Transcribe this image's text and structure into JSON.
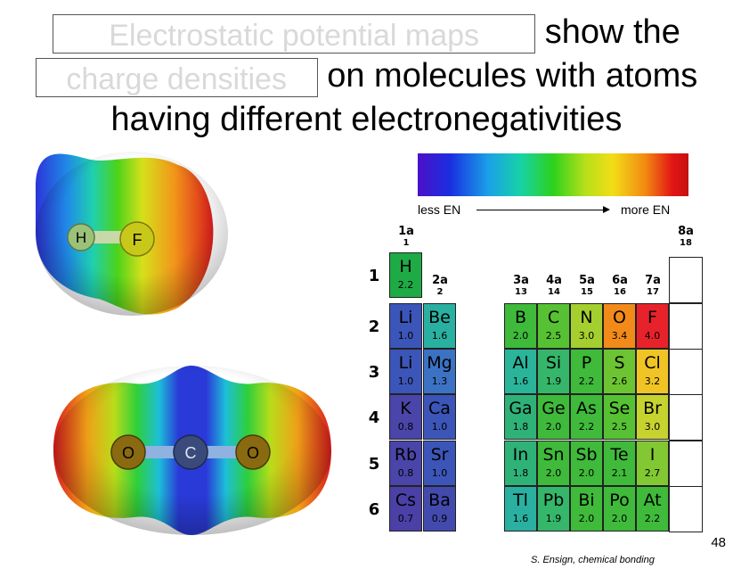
{
  "title": {
    "line1_blank": "Electrostatic potential maps",
    "line1_text": "show the",
    "line2_blank": "charge densities",
    "line2_text": "on molecules with atoms",
    "line3_text": "having different electronegativities"
  },
  "scale": {
    "low": "less EN",
    "high": "more EN"
  },
  "molecules": {
    "hf": {
      "atom1": "H",
      "atom2": "F"
    },
    "co2": {
      "atom1": "O",
      "atom2": "C",
      "atom3": "O"
    }
  },
  "periodic_table": {
    "groups": [
      {
        "a": "1a",
        "n": "1"
      },
      {
        "a": "2a",
        "n": "2"
      },
      {
        "a": "3a",
        "n": "13"
      },
      {
        "a": "4a",
        "n": "14"
      },
      {
        "a": "5a",
        "n": "15"
      },
      {
        "a": "6a",
        "n": "16"
      },
      {
        "a": "7a",
        "n": "17"
      },
      {
        "a": "8a",
        "n": "18"
      }
    ],
    "periods": [
      "1",
      "2",
      "3",
      "4",
      "5",
      "6"
    ],
    "elements": [
      {
        "sym": "H",
        "en": "2.2",
        "color": "#1eaa45"
      },
      {
        "sym": "Li",
        "en": "1.0",
        "color": "#3c55b8"
      },
      {
        "sym": "Be",
        "en": "1.6",
        "color": "#2ab0a0"
      },
      {
        "sym": "B",
        "en": "2.0",
        "color": "#3fba3a"
      },
      {
        "sym": "C",
        "en": "2.5",
        "color": "#56c233"
      },
      {
        "sym": "N",
        "en": "3.0",
        "color": "#a4cf2e"
      },
      {
        "sym": "O",
        "en": "3.4",
        "color": "#f28a1a"
      },
      {
        "sym": "F",
        "en": "4.0",
        "color": "#e8222a"
      },
      {
        "sym": "Li",
        "en": "1.0",
        "color": "#3c55b8"
      },
      {
        "sym": "Mg",
        "en": "1.3",
        "color": "#3c72c4"
      },
      {
        "sym": "Al",
        "en": "1.6",
        "color": "#2ab49a"
      },
      {
        "sym": "Si",
        "en": "1.9",
        "color": "#35b66a"
      },
      {
        "sym": "P",
        "en": "2.2",
        "color": "#3fba3a"
      },
      {
        "sym": "S",
        "en": "2.6",
        "color": "#6dc433"
      },
      {
        "sym": "Cl",
        "en": "3.2",
        "color": "#f0c425"
      },
      {
        "sym": "K",
        "en": "0.8",
        "color": "#4a45a8"
      },
      {
        "sym": "Ca",
        "en": "1.0",
        "color": "#3c55b8"
      },
      {
        "sym": "Ga",
        "en": "1.8",
        "color": "#2fb278"
      },
      {
        "sym": "Ge",
        "en": "2.0",
        "color": "#3fba3a"
      },
      {
        "sym": "As",
        "en": "2.2",
        "color": "#3fba3a"
      },
      {
        "sym": "Se",
        "en": "2.5",
        "color": "#56c233"
      },
      {
        "sym": "Br",
        "en": "3.0",
        "color": "#c6d22e"
      },
      {
        "sym": "Rb",
        "en": "0.8",
        "color": "#4a45a8"
      },
      {
        "sym": "Sr",
        "en": "1.0",
        "color": "#3c55b8"
      },
      {
        "sym": "In",
        "en": "1.8",
        "color": "#2fb278"
      },
      {
        "sym": "Sn",
        "en": "2.0",
        "color": "#3fba3a"
      },
      {
        "sym": "Sb",
        "en": "2.0",
        "color": "#3fba3a"
      },
      {
        "sym": "Te",
        "en": "2.1",
        "color": "#3fba3a"
      },
      {
        "sym": "I",
        "en": "2.7",
        "color": "#82c833"
      },
      {
        "sym": "Cs",
        "en": "0.7",
        "color": "#4a40a6"
      },
      {
        "sym": "Ba",
        "en": "0.9",
        "color": "#434aae"
      },
      {
        "sym": "Tl",
        "en": "1.6",
        "color": "#2ab0a0"
      },
      {
        "sym": "Pb",
        "en": "1.9",
        "color": "#35b66a"
      },
      {
        "sym": "Bi",
        "en": "2.0",
        "color": "#3fba3a"
      },
      {
        "sym": "Po",
        "en": "2.0",
        "color": "#3fba3a"
      },
      {
        "sym": "At",
        "en": "2.2",
        "color": "#3fba3a"
      }
    ]
  },
  "footer": {
    "page_number": "48",
    "credit": "S. Ensign, chemical bonding"
  }
}
